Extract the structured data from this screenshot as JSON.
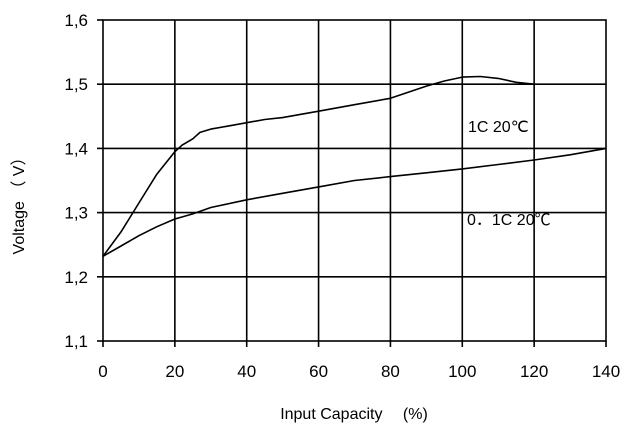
{
  "chart_data": {
    "type": "line",
    "title": "",
    "xlabel": "Input Capacity　 (%)",
    "ylabel": "Voltage （ V）",
    "xlim": [
      0,
      140
    ],
    "ylim": [
      1.1,
      1.6
    ],
    "xticks": [
      "0",
      "20",
      "40",
      "60",
      "80",
      "100",
      "120",
      "140"
    ],
    "yticks": [
      "1,6",
      "1,5",
      "1,4",
      "1,3",
      "1,2",
      "1,1"
    ],
    "grid": true,
    "series": [
      {
        "name": "1C 20℃",
        "x": [
          0,
          5,
          10,
          15,
          20,
          22,
          25,
          27,
          30,
          35,
          40,
          45,
          50,
          60,
          70,
          80,
          90,
          95,
          100,
          105,
          110,
          115,
          120
        ],
        "y": [
          1.232,
          1.27,
          1.315,
          1.36,
          1.395,
          1.405,
          1.415,
          1.425,
          1.43,
          1.435,
          1.44,
          1.445,
          1.448,
          1.458,
          1.468,
          1.478,
          1.497,
          1.505,
          1.511,
          1.512,
          1.509,
          1.503,
          1.5
        ]
      },
      {
        "name": "0．1C 20℃",
        "x": [
          0,
          5,
          10,
          15,
          20,
          25,
          30,
          40,
          50,
          60,
          70,
          80,
          90,
          100,
          110,
          120,
          130,
          140
        ],
        "y": [
          1.232,
          1.248,
          1.264,
          1.278,
          1.29,
          1.298,
          1.308,
          1.32,
          1.33,
          1.34,
          1.35,
          1.356,
          1.362,
          1.368,
          1.375,
          1.382,
          1.39,
          1.4
        ]
      }
    ]
  }
}
